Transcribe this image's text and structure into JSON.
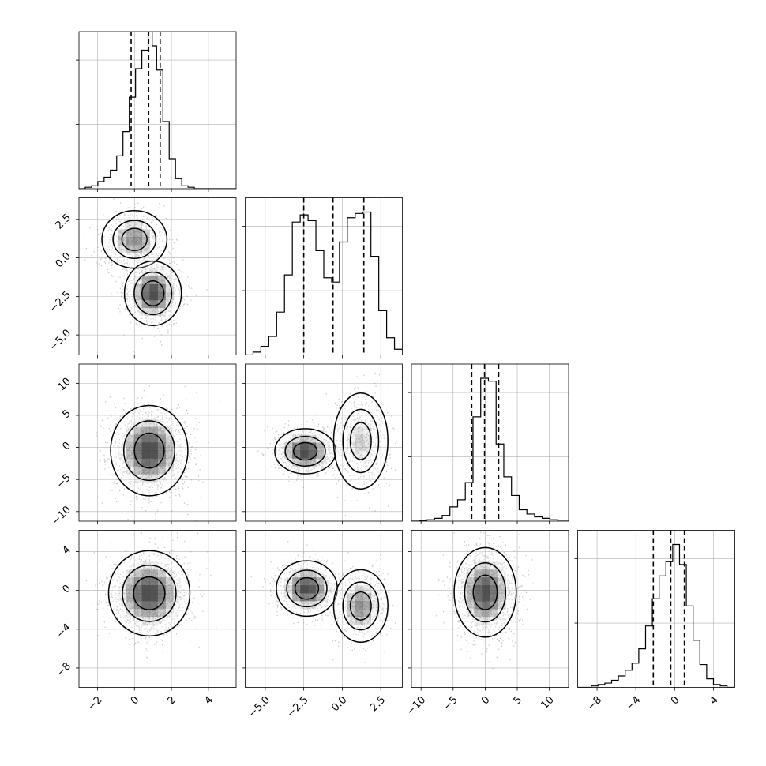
{
  "chart_data": {
    "type": "corner",
    "parameters": [
      {
        "ticks": [
          -2,
          0,
          2,
          4
        ],
        "tick_labels": [
          "−2",
          "0",
          "2",
          "4"
        ],
        "range": [
          -3,
          5.5
        ],
        "quantiles": [
          -0.18,
          0.77,
          1.39
        ],
        "hist_x": [
          -3,
          -2.66,
          -2.32,
          -1.98,
          -1.64,
          -1.3,
          -0.96,
          -0.62,
          -0.28,
          0.06,
          0.4,
          0.74,
          0.96,
          1.2,
          1.54,
          1.88,
          2.22,
          2.56,
          2.9,
          3.24,
          3.58,
          3.92,
          4.26,
          4.6,
          4.94,
          5.28
        ],
        "hist_y": [
          0.0,
          0.01,
          0.02,
          0.05,
          0.08,
          0.13,
          0.23,
          0.4,
          0.64,
          0.84,
          0.97,
          1.12,
          1.0,
          0.83,
          0.47,
          0.21,
          0.07,
          0.02,
          0.01,
          0,
          0,
          0,
          0,
          0,
          0,
          0
        ]
      },
      {
        "ticks": [
          -5.0,
          -2.5,
          0.0,
          2.5
        ],
        "tick_labels": [
          "−5.0",
          "−2.5",
          "0.0",
          "2.5"
        ],
        "range": [
          -6.3,
          3.9
        ],
        "quantiles": [
          -2.5,
          -0.6,
          1.4
        ],
        "hist_x": [
          -6.3,
          -5.79,
          -5.28,
          -4.77,
          -4.26,
          -3.75,
          -3.24,
          -2.73,
          -2.22,
          -1.71,
          -1.2,
          -0.69,
          -0.18,
          0.33,
          0.84,
          1.35,
          1.86,
          2.37,
          2.88,
          3.39
        ],
        "hist_y": [
          0,
          0.02,
          0.06,
          0.13,
          0.3,
          0.56,
          0.93,
          0.98,
          0.94,
          0.73,
          0.54,
          0.51,
          0.79,
          0.96,
          0.99,
          1.0,
          0.69,
          0.31,
          0.12,
          0.04
        ]
      },
      {
        "ticks": [
          -10,
          -5,
          0,
          5,
          10
        ],
        "tick_labels": [
          "−10",
          "−5",
          "0",
          "5",
          "10"
        ],
        "range": [
          -11.5,
          13
        ],
        "quantiles": [
          -2.1,
          -0.1,
          2.1
        ],
        "hist_x": [
          -11.5,
          -10.3,
          -9.1,
          -7.9,
          -6.7,
          -5.5,
          -4.3,
          -3.1,
          -1.9,
          -0.7,
          0.5,
          1.7,
          2.9,
          4.1,
          5.3,
          6.5,
          7.7,
          8.9,
          10.1,
          11.3
        ],
        "hist_y": [
          0,
          0.005,
          0.01,
          0.02,
          0.04,
          0.1,
          0.15,
          0.27,
          0.73,
          1.0,
          0.98,
          0.54,
          0.31,
          0.18,
          0.08,
          0.05,
          0.03,
          0.02,
          0.01,
          0
        ]
      },
      {
        "ticks": [
          -8,
          -4,
          0,
          4
        ],
        "tick_labels": [
          "−8",
          "−4",
          "0",
          "4"
        ],
        "range": [
          -10,
          6.2
        ],
        "quantiles": [
          -2.2,
          -0.4,
          1.0
        ],
        "hist_x": [
          -10,
          -9.3,
          -8.6,
          -7.9,
          -7.2,
          -6.5,
          -5.8,
          -5.1,
          -4.4,
          -3.7,
          -3.0,
          -2.3,
          -1.6,
          -0.9,
          -0.2,
          0.5,
          1.2,
          1.9,
          2.6,
          3.3,
          4.0,
          4.7,
          5.4
        ],
        "hist_y": [
          0,
          0,
          0.01,
          0.02,
          0.03,
          0.05,
          0.08,
          0.12,
          0.17,
          0.27,
          0.43,
          0.62,
          0.78,
          0.88,
          1.0,
          0.86,
          0.57,
          0.33,
          0.16,
          0.06,
          0.02,
          0.01,
          0
        ]
      }
    ],
    "pairs": [
      {
        "row": 1,
        "col": 0,
        "ytick_labels": [
          "−5.0",
          "−2.5",
          "0.0",
          "2.5"
        ],
        "yticks": [
          -5.0,
          -2.5,
          0.0,
          2.5
        ],
        "components": [
          {
            "mx": 0.0,
            "my": 1.2,
            "sx": 0.8,
            "sy": 0.85,
            "w": 0.42
          },
          {
            "mx": 1.0,
            "my": -2.3,
            "sx": 0.7,
            "sy": 0.95,
            "w": 0.58
          }
        ]
      },
      {
        "row": 2,
        "col": 0,
        "ytick_labels": [
          "−10",
          "−5",
          "0",
          "5",
          "10"
        ],
        "yticks": [
          -10,
          -5,
          0,
          5,
          10
        ],
        "components": [
          {
            "mx": 0.8,
            "my": -0.5,
            "sx": 0.95,
            "sy": 3.2,
            "w": 1.0
          }
        ]
      },
      {
        "row": 2,
        "col": 1,
        "components": [
          {
            "mx": -2.4,
            "my": -0.6,
            "sx": 0.9,
            "sy": 1.6,
            "w": 0.55
          },
          {
            "mx": 1.2,
            "my": 1.0,
            "sx": 0.8,
            "sy": 3.4,
            "w": 0.45
          }
        ]
      },
      {
        "row": 3,
        "col": 0,
        "ytick_labels": [
          "−8",
          "−4",
          "0",
          "4"
        ],
        "yticks": [
          -8,
          -4,
          0,
          4
        ],
        "components": [
          {
            "mx": 0.8,
            "my": -0.3,
            "sx": 1.0,
            "sy": 2.0,
            "w": 1.0
          }
        ]
      },
      {
        "row": 3,
        "col": 1,
        "components": [
          {
            "mx": -2.3,
            "my": 0.2,
            "sx": 0.9,
            "sy": 1.3,
            "w": 0.55
          },
          {
            "mx": 1.2,
            "my": -1.6,
            "sx": 0.8,
            "sy": 1.7,
            "w": 0.45
          }
        ]
      },
      {
        "row": 3,
        "col": 2,
        "components": [
          {
            "mx": 0.0,
            "my": -0.2,
            "sx": 2.2,
            "sy": 2.1,
            "w": 1.0
          }
        ]
      }
    ],
    "grid": true,
    "title": "",
    "colors": {
      "contour": "#000000",
      "points": "#9a9a9a",
      "density": "#000000",
      "grid": "#b0b0b0",
      "quantile": "#000000"
    }
  }
}
